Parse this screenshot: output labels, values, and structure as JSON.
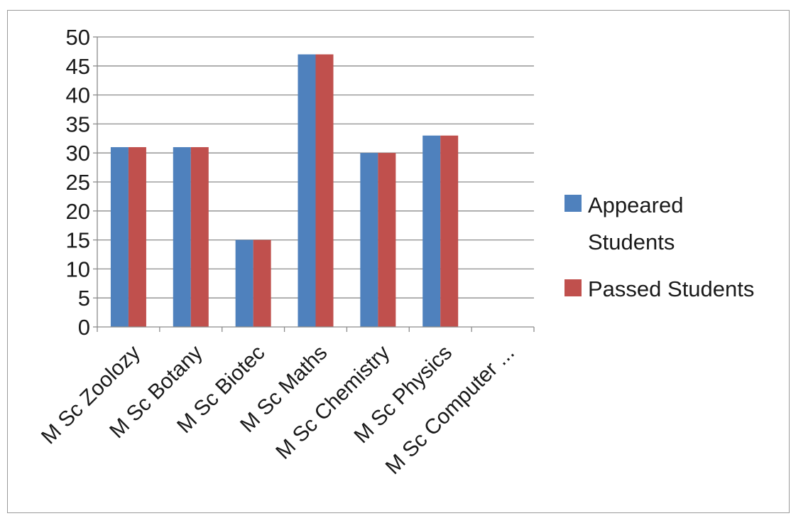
{
  "chart_data": {
    "type": "bar",
    "title": "",
    "xlabel": "",
    "ylabel": "",
    "categories": [
      "M Sc Zoolozy",
      "M Sc Botany",
      "M Sc Biotec",
      "M Sc Maths",
      "M Sc Chemistry",
      "M Sc Physics",
      "M Sc Computer ..."
    ],
    "series": [
      {
        "name": "Appeared Students",
        "color": "#4f81bd",
        "values": [
          31,
          31,
          15,
          47,
          30,
          33,
          0
        ]
      },
      {
        "name": "Passed Students",
        "color": "#c0504d",
        "values": [
          31,
          31,
          15,
          47,
          30,
          33,
          0
        ]
      }
    ],
    "ylim": [
      0,
      50
    ],
    "yticks": [
      0,
      5,
      10,
      15,
      20,
      25,
      30,
      35,
      40,
      45,
      50
    ],
    "grid": true,
    "legend": "right"
  }
}
